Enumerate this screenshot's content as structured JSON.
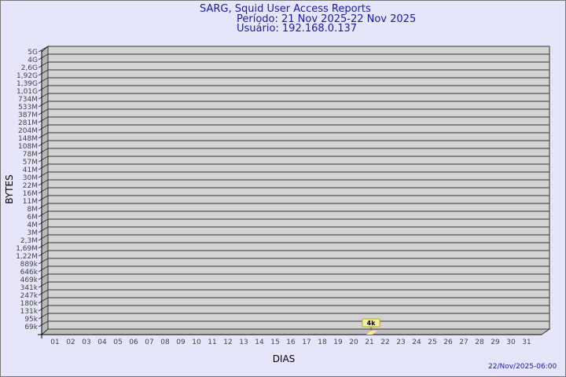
{
  "chart_data": {
    "type": "bar",
    "title": "SARG, Squid User Access Reports",
    "subtitle": [
      "Período: 21 Nov 2025-22 Nov 2025",
      "Usuário: 192.168.0.137"
    ],
    "xlabel": "DIAS",
    "ylabel": "BYTES",
    "y_tick_labels": [
      "5G",
      "4G",
      "2,6G",
      "1,92G",
      "1,39G",
      "1,01G",
      "734M",
      "533M",
      "387M",
      "281M",
      "204M",
      "148M",
      "108M",
      "78M",
      "57M",
      "41M",
      "30M",
      "22M",
      "16M",
      "11M",
      "8M",
      "6M",
      "4M",
      "3M",
      "2,3M",
      "1,69M",
      "1,22M",
      "889k",
      "646k",
      "469k",
      "341k",
      "247k",
      "180k",
      "131k",
      "95k",
      "69k"
    ],
    "y_scale": "log",
    "categories": [
      "01",
      "02",
      "03",
      "04",
      "05",
      "06",
      "07",
      "08",
      "09",
      "10",
      "11",
      "12",
      "13",
      "14",
      "15",
      "16",
      "17",
      "18",
      "19",
      "20",
      "21",
      "22",
      "23",
      "24",
      "25",
      "26",
      "27",
      "28",
      "29",
      "30",
      "31"
    ],
    "bars": [
      {
        "category": "21",
        "value": 4000,
        "label": "4k"
      }
    ],
    "grid": true,
    "colors": {
      "background": "#e6e6fa",
      "plot": "#d3d3d3",
      "bar": "#ffe88a",
      "text": "#1a1aa6"
    }
  },
  "footer": {
    "date": "22/Nov/2025-06:00"
  }
}
